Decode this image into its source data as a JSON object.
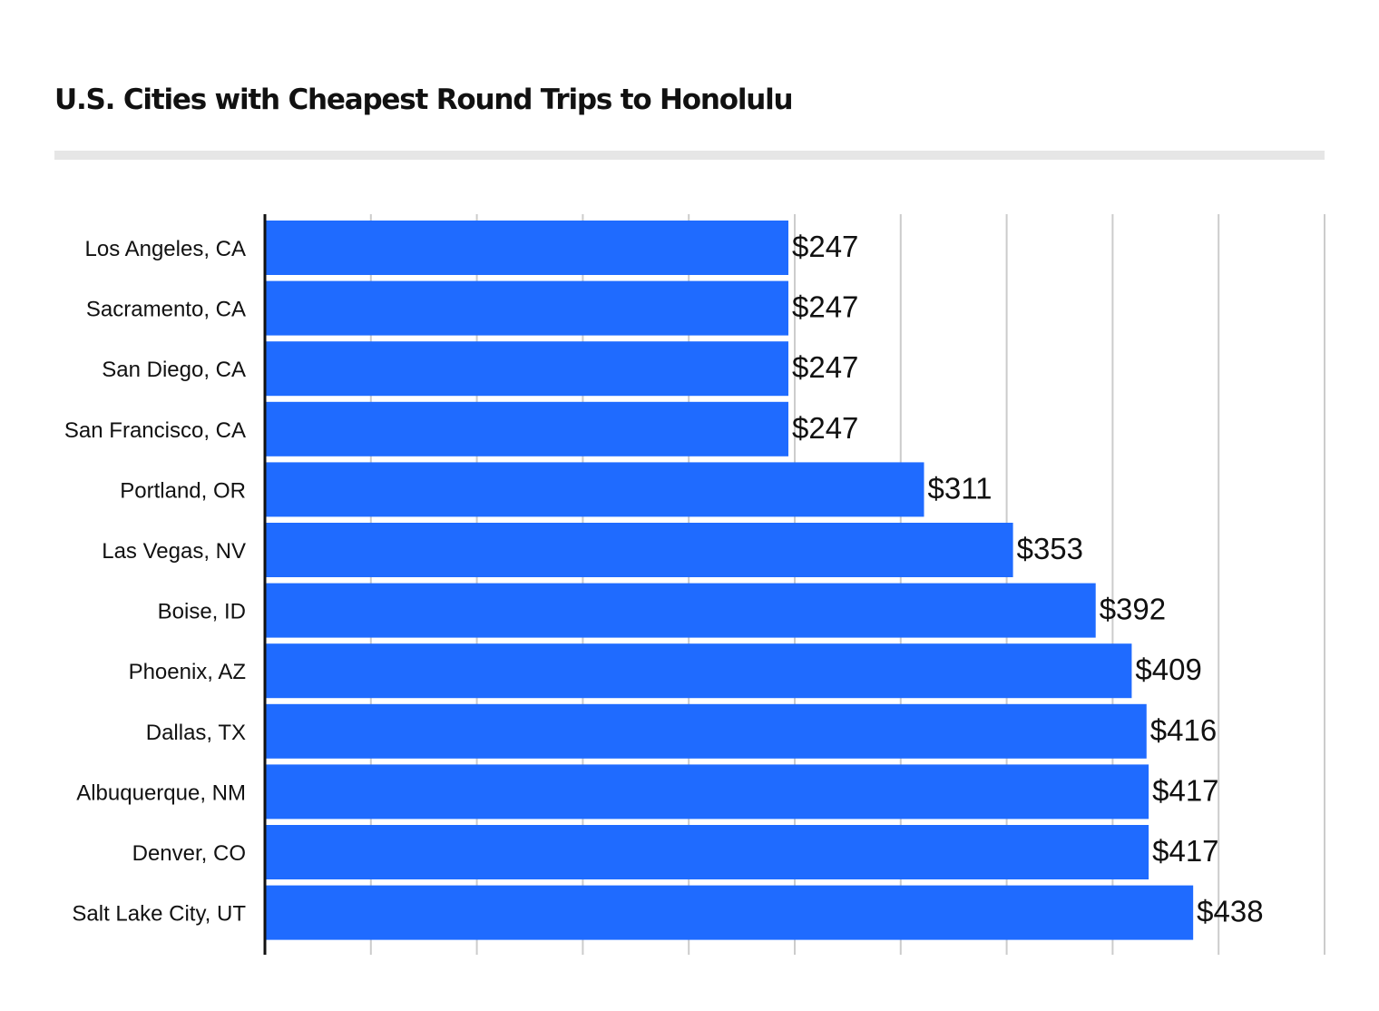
{
  "chart_data": {
    "type": "bar",
    "orientation": "horizontal",
    "title": "U.S. Cities with Cheapest Round Trips to Honolulu",
    "categories": [
      "Los Angeles, CA",
      "Sacramento, CA",
      "San Diego, CA",
      "San Francisco, CA",
      "Portland, OR",
      "Las Vegas, NV",
      "Boise, ID",
      "Phoenix, AZ",
      "Dallas, TX",
      "Albuquerque, NM",
      "Denver, CO",
      "Salt Lake City, UT"
    ],
    "values": [
      247,
      247,
      247,
      247,
      311,
      353,
      392,
      409,
      416,
      417,
      417,
      438
    ],
    "value_labels": [
      "$247",
      "$247",
      "$247",
      "$247",
      "$311",
      "$353",
      "$392",
      "$409",
      "$416",
      "$417",
      "$417",
      "$438"
    ],
    "xlim": [
      0,
      500
    ],
    "grid": true,
    "bar_color": "#1f6bff"
  }
}
